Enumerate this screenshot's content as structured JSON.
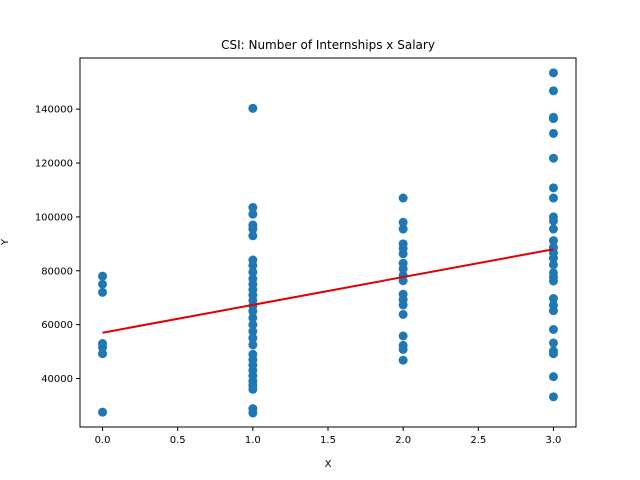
{
  "chart_data": {
    "type": "scatter",
    "title": "CSI: Number of Internships x Salary",
    "xlabel": "X",
    "ylabel": "Y",
    "xlim": [
      -0.15,
      3.15
    ],
    "ylim": [
      22000,
      159000
    ],
    "xticks": [
      0.0,
      0.5,
      1.0,
      1.5,
      2.0,
      2.5,
      3.0
    ],
    "xtick_labels": [
      "0.0",
      "0.5",
      "1.0",
      "1.5",
      "2.0",
      "2.5",
      "3.0"
    ],
    "yticks": [
      40000,
      60000,
      80000,
      100000,
      120000,
      140000
    ],
    "ytick_labels": [
      "40000",
      "60000",
      "80000",
      "100000",
      "120000",
      "140000"
    ],
    "grid": false,
    "colors": {
      "points": "#1f77b4",
      "fit_line": "#e00000",
      "axes": "#000000"
    },
    "points": [
      {
        "x": 0,
        "y": 27500
      },
      {
        "x": 0,
        "y": 49200
      },
      {
        "x": 0,
        "y": 51500
      },
      {
        "x": 0,
        "y": 53000
      },
      {
        "x": 0,
        "y": 72000
      },
      {
        "x": 0,
        "y": 75000
      },
      {
        "x": 0,
        "y": 78000
      },
      {
        "x": 1,
        "y": 27200
      },
      {
        "x": 1,
        "y": 28800
      },
      {
        "x": 1,
        "y": 36000
      },
      {
        "x": 1,
        "y": 37500
      },
      {
        "x": 1,
        "y": 39000
      },
      {
        "x": 1,
        "y": 41000
      },
      {
        "x": 1,
        "y": 43000
      },
      {
        "x": 1,
        "y": 45000
      },
      {
        "x": 1,
        "y": 47000
      },
      {
        "x": 1,
        "y": 49000
      },
      {
        "x": 1,
        "y": 52500
      },
      {
        "x": 1,
        "y": 55000
      },
      {
        "x": 1,
        "y": 57500
      },
      {
        "x": 1,
        "y": 60000
      },
      {
        "x": 1,
        "y": 62500
      },
      {
        "x": 1,
        "y": 65000
      },
      {
        "x": 1,
        "y": 67000
      },
      {
        "x": 1,
        "y": 69000
      },
      {
        "x": 1,
        "y": 71000
      },
      {
        "x": 1,
        "y": 73000
      },
      {
        "x": 1,
        "y": 75000
      },
      {
        "x": 1,
        "y": 77000
      },
      {
        "x": 1,
        "y": 79500
      },
      {
        "x": 1,
        "y": 82000
      },
      {
        "x": 1,
        "y": 84000
      },
      {
        "x": 1,
        "y": 93000
      },
      {
        "x": 1,
        "y": 95500
      },
      {
        "x": 1,
        "y": 97000
      },
      {
        "x": 1,
        "y": 101000
      },
      {
        "x": 1,
        "y": 103500
      },
      {
        "x": 1,
        "y": 140300
      },
      {
        "x": 2,
        "y": 46800
      },
      {
        "x": 2,
        "y": 50800
      },
      {
        "x": 2,
        "y": 52300
      },
      {
        "x": 2,
        "y": 55800
      },
      {
        "x": 2,
        "y": 63800
      },
      {
        "x": 2,
        "y": 67300
      },
      {
        "x": 2,
        "y": 69300
      },
      {
        "x": 2,
        "y": 71300
      },
      {
        "x": 2,
        "y": 76300
      },
      {
        "x": 2,
        "y": 78300
      },
      {
        "x": 2,
        "y": 80800
      },
      {
        "x": 2,
        "y": 82800
      },
      {
        "x": 2,
        "y": 86300
      },
      {
        "x": 2,
        "y": 88300
      },
      {
        "x": 2,
        "y": 90000
      },
      {
        "x": 2,
        "y": 95500
      },
      {
        "x": 2,
        "y": 98000
      },
      {
        "x": 2,
        "y": 107000
      },
      {
        "x": 3,
        "y": 33200
      },
      {
        "x": 3,
        "y": 40700
      },
      {
        "x": 3,
        "y": 49200
      },
      {
        "x": 3,
        "y": 50200
      },
      {
        "x": 3,
        "y": 53200
      },
      {
        "x": 3,
        "y": 58200
      },
      {
        "x": 3,
        "y": 65200
      },
      {
        "x": 3,
        "y": 67200
      },
      {
        "x": 3,
        "y": 69700
      },
      {
        "x": 3,
        "y": 76200
      },
      {
        "x": 3,
        "y": 77700
      },
      {
        "x": 3,
        "y": 79200
      },
      {
        "x": 3,
        "y": 82200
      },
      {
        "x": 3,
        "y": 84700
      },
      {
        "x": 3,
        "y": 86700
      },
      {
        "x": 3,
        "y": 88700
      },
      {
        "x": 3,
        "y": 91200
      },
      {
        "x": 3,
        "y": 95500
      },
      {
        "x": 3,
        "y": 98500
      },
      {
        "x": 3,
        "y": 100000
      },
      {
        "x": 3,
        "y": 107000
      },
      {
        "x": 3,
        "y": 110800
      },
      {
        "x": 3,
        "y": 121800
      },
      {
        "x": 3,
        "y": 131000
      },
      {
        "x": 3,
        "y": 136500
      },
      {
        "x": 3,
        "y": 137000
      },
      {
        "x": 3,
        "y": 146800
      },
      {
        "x": 3,
        "y": 153500
      }
    ],
    "fit_line": {
      "x": [
        0,
        3
      ],
      "y": [
        57000,
        88000
      ]
    }
  }
}
